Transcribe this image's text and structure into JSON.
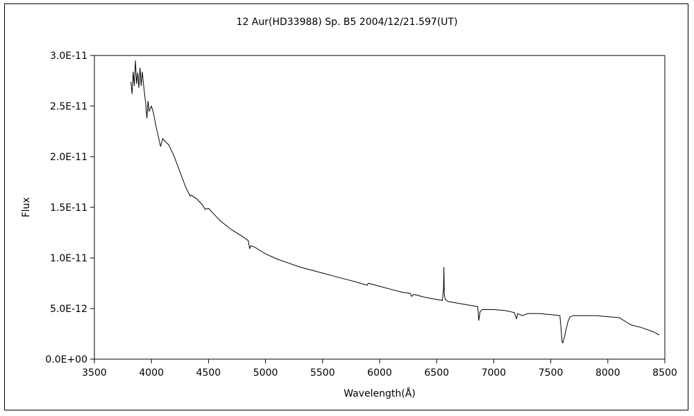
{
  "chart_data": {
    "type": "line",
    "title": "12 Aur(HD33988)  Sp. B5   2004/12/21.597(UT)",
    "xlabel": "Wavelength(Å)",
    "ylabel": "Flux",
    "xlim": [
      3500,
      8500
    ],
    "ylim": [
      0,
      3e-11
    ],
    "xticks": [
      3500,
      4000,
      4500,
      5000,
      5500,
      6000,
      6500,
      7000,
      7500,
      8000,
      8500
    ],
    "xtick_labels": [
      "3500",
      "4000",
      "4500",
      "5000",
      "5500",
      "6000",
      "6500",
      "7000",
      "7500",
      "8000",
      "8500"
    ],
    "yticks": [
      0,
      5e-12,
      1e-11,
      1.5e-11,
      2e-11,
      2.5e-11,
      3e-11
    ],
    "ytick_labels": [
      "0.0E+00",
      "5.0E-12",
      "1.0E-11",
      "1.5E-11",
      "2.0E-11",
      "2.5E-11",
      "3.0E-11"
    ],
    "grid": false,
    "legend": "none",
    "series": [
      {
        "color": "#000000",
        "x": [
          3820,
          3830,
          3840,
          3850,
          3860,
          3870,
          3880,
          3890,
          3900,
          3910,
          3920,
          3930,
          3940,
          3950,
          3960,
          3970,
          3980,
          4000,
          4020,
          4040,
          4060,
          4080,
          4100,
          4120,
          4150,
          4180,
          4200,
          4250,
          4300,
          4340,
          4350,
          4400,
          4450,
          4470,
          4500,
          4550,
          4600,
          4700,
          4800,
          4850,
          4861,
          4870,
          4900,
          5000,
          5100,
          5200,
          5300,
          5400,
          5500,
          5600,
          5700,
          5800,
          5890,
          5900,
          6000,
          6100,
          6200,
          6270,
          6280,
          6300,
          6400,
          6500,
          6550,
          6560,
          6563,
          6567,
          6575,
          6600,
          6700,
          6800,
          6860,
          6869,
          6880,
          6900,
          7000,
          7100,
          7180,
          7200,
          7210,
          7250,
          7300,
          7400,
          7500,
          7580,
          7600,
          7605,
          7620,
          7650,
          7670,
          7700,
          7800,
          7900,
          8000,
          8100,
          8200,
          8300,
          8400,
          8450
        ],
        "y": [
          2.74e-11,
          2.62e-11,
          2.84e-11,
          2.7e-11,
          2.95e-11,
          2.72e-11,
          2.83e-11,
          2.68e-11,
          2.88e-11,
          2.7e-11,
          2.84e-11,
          2.72e-11,
          2.62e-11,
          2.52e-11,
          2.38e-11,
          2.55e-11,
          2.45e-11,
          2.5e-11,
          2.42e-11,
          2.3e-11,
          2.2e-11,
          2.1e-11,
          2.18e-11,
          2.15e-11,
          2.12e-11,
          2.05e-11,
          2e-11,
          1.85e-11,
          1.7e-11,
          1.61e-11,
          1.62e-11,
          1.58e-11,
          1.52e-11,
          1.48e-11,
          1.49e-11,
          1.43e-11,
          1.37e-11,
          1.28e-11,
          1.21e-11,
          1.17e-11,
          1.09e-11,
          1.12e-11,
          1.11e-11,
          1.04e-11,
          9.9e-12,
          9.5e-12,
          9.1e-12,
          8.8e-12,
          8.5e-12,
          8.2e-12,
          7.9e-12,
          7.6e-12,
          7.3e-12,
          7.5e-12,
          7.2e-12,
          6.9e-12,
          6.6e-12,
          6.5e-12,
          6.2e-12,
          6.4e-12,
          6.1e-12,
          5.9e-12,
          5.8e-12,
          7e-12,
          9.1e-12,
          6.4e-12,
          5.9e-12,
          5.7e-12,
          5.5e-12,
          5.3e-12,
          5.2e-12,
          3.8e-12,
          4.7e-12,
          4.9e-12,
          4.9e-12,
          4.8e-12,
          4.6e-12,
          4e-12,
          4.5e-12,
          4.3e-12,
          4.5e-12,
          4.5e-12,
          4.4e-12,
          4.3e-12,
          1.7e-12,
          1.6e-12,
          2.2e-12,
          3.7e-12,
          4.2e-12,
          4.3e-12,
          4.3e-12,
          4.3e-12,
          4.2e-12,
          4.1e-12,
          3.4e-12,
          3.1e-12,
          2.7e-12,
          2.4e-12
        ]
      }
    ]
  }
}
